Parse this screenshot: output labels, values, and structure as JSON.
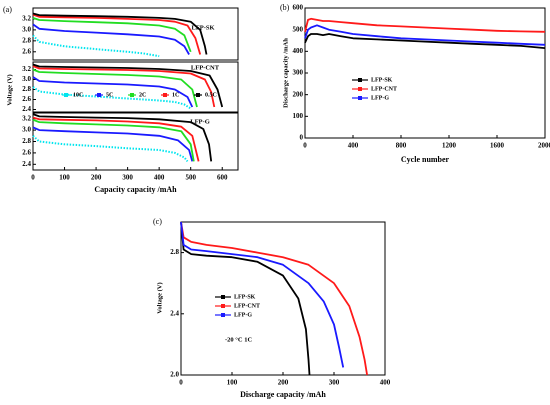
{
  "chart_data": [
    {
      "type": "line",
      "panel": "(a)",
      "title": "LFP-SK",
      "xlim": [
        0,
        650
      ],
      "ylim": [
        2.45,
        3.4
      ],
      "yticks": [
        2.6,
        2.8,
        {
          "value": 3,
          "label": "3.0"
        },
        3.2
      ],
      "series": [
        {
          "color": "#00e5ee",
          "x": [
            0,
            20,
            100,
            200,
            300,
            350,
            400
          ],
          "values": [
            2.9,
            2.78,
            2.7,
            2.65,
            2.6,
            2.57,
            2.52
          ]
        },
        {
          "color": "#1a1aff",
          "x": [
            0,
            20,
            100,
            200,
            300,
            400,
            450,
            480,
            495
          ],
          "values": [
            3.1,
            3.02,
            2.98,
            2.95,
            2.92,
            2.88,
            2.82,
            2.7,
            2.55
          ]
        },
        {
          "color": "#22dd22",
          "x": [
            0,
            20,
            100,
            200,
            300,
            400,
            450,
            480,
            500
          ],
          "values": [
            3.22,
            3.18,
            3.16,
            3.14,
            3.12,
            3.08,
            3.02,
            2.9,
            2.6
          ]
        },
        {
          "color": "#ff1a1a",
          "x": [
            0,
            20,
            100,
            200,
            300,
            400,
            450,
            490,
            515,
            530
          ],
          "values": [
            3.28,
            3.24,
            3.23,
            3.22,
            3.2,
            3.18,
            3.15,
            3.08,
            2.85,
            2.55
          ]
        },
        {
          "color": "#000000",
          "x": [
            0,
            20,
            100,
            200,
            300,
            400,
            450,
            500,
            530,
            545,
            550
          ],
          "values": [
            3.3,
            3.27,
            3.26,
            3.25,
            3.24,
            3.22,
            3.2,
            3.15,
            3.0,
            2.7,
            2.55
          ]
        }
      ]
    },
    {
      "type": "line",
      "title": "LFP-CNT",
      "ylabel": "Voltage (V)",
      "xlim": [
        0,
        650
      ],
      "ylim": [
        2.35,
        3.35
      ],
      "yticks": [
        2.4,
        2.6,
        2.8,
        {
          "value": 3,
          "label": "3.0"
        },
        3.2
      ],
      "legend": "bottom-left",
      "series": [
        {
          "name": "10C",
          "color": "#00e5ee",
          "x": [
            0,
            20,
            100,
            200,
            300,
            400,
            450,
            480,
            500
          ],
          "values": [
            2.85,
            2.76,
            2.7,
            2.66,
            2.62,
            2.58,
            2.55,
            2.5,
            2.42
          ]
        },
        {
          "name": "5C",
          "color": "#1a1aff",
          "x": [
            0,
            20,
            100,
            200,
            300,
            400,
            450,
            490,
            505
          ],
          "values": [
            3.05,
            2.97,
            2.94,
            2.92,
            2.9,
            2.86,
            2.8,
            2.65,
            2.45
          ]
        },
        {
          "name": "2C",
          "color": "#22dd22",
          "x": [
            0,
            20,
            100,
            200,
            300,
            400,
            470,
            505,
            520
          ],
          "values": [
            3.2,
            3.15,
            3.13,
            3.11,
            3.09,
            3.06,
            3.0,
            2.8,
            2.45
          ]
        },
        {
          "name": "1C",
          "color": "#ff1a1a",
          "x": [
            0,
            20,
            100,
            200,
            300,
            400,
            500,
            545,
            565,
            575
          ],
          "values": [
            3.27,
            3.22,
            3.21,
            3.2,
            3.19,
            3.17,
            3.12,
            3.0,
            2.75,
            2.45
          ]
        },
        {
          "name": "0.5C",
          "color": "#000000",
          "x": [
            0,
            20,
            100,
            200,
            300,
            400,
            500,
            560,
            585,
            600
          ],
          "values": [
            3.3,
            3.26,
            3.25,
            3.24,
            3.23,
            3.21,
            3.17,
            3.08,
            2.8,
            2.45
          ]
        }
      ]
    },
    {
      "type": "line",
      "title": "LFP-G",
      "xlabel": "Capacity capacity /mAh",
      "xlim": [
        0,
        650
      ],
      "ylim": [
        2.3,
        3.3
      ],
      "xticks": [
        0,
        100,
        200,
        300,
        400,
        500,
        600
      ],
      "yticks": [
        2.4,
        2.6,
        2.8,
        {
          "value": 3,
          "label": "3.0"
        },
        3.2
      ],
      "series": [
        {
          "color": "#00e5ee",
          "x": [
            0,
            20,
            100,
            200,
            300,
            400,
            450,
            480,
            490
          ],
          "values": [
            2.9,
            2.8,
            2.75,
            2.72,
            2.68,
            2.65,
            2.6,
            2.52,
            2.45
          ]
        },
        {
          "color": "#1a1aff",
          "x": [
            0,
            20,
            100,
            200,
            300,
            400,
            460,
            495,
            505
          ],
          "values": [
            3.05,
            3.0,
            2.98,
            2.96,
            2.94,
            2.9,
            2.82,
            2.65,
            2.45
          ]
        },
        {
          "color": "#22dd22",
          "x": [
            0,
            20,
            100,
            200,
            300,
            400,
            470,
            500,
            510
          ],
          "values": [
            3.18,
            3.14,
            3.12,
            3.1,
            3.08,
            3.05,
            2.98,
            2.75,
            2.45
          ]
        },
        {
          "color": "#ff1a1a",
          "x": [
            0,
            20,
            100,
            200,
            300,
            400,
            470,
            505,
            525
          ],
          "values": [
            3.22,
            3.19,
            3.18,
            3.17,
            3.15,
            3.12,
            3.06,
            2.9,
            2.45
          ]
        },
        {
          "color": "#000000",
          "x": [
            0,
            20,
            100,
            200,
            300,
            400,
            500,
            540,
            558,
            565
          ],
          "values": [
            3.28,
            3.24,
            3.23,
            3.22,
            3.21,
            3.19,
            3.14,
            3.02,
            2.75,
            2.45
          ]
        }
      ]
    },
    {
      "type": "line",
      "panel": "(b)",
      "xlabel": "Cycle number",
      "ylabel": "Discharge capacity /mAh",
      "xlim": [
        0,
        2000
      ],
      "ylim": [
        0,
        600
      ],
      "xticks": [
        0,
        400,
        800,
        1200,
        1600,
        2000
      ],
      "yticks": [
        0,
        100,
        200,
        300,
        400,
        500,
        600
      ],
      "legend": "center",
      "series": [
        {
          "name": "LFP-SK",
          "color": "#000000",
          "x": [
            0,
            25,
            50,
            100,
            150,
            200,
            300,
            400,
            600,
            800,
            1000,
            1200,
            1400,
            1600,
            1800,
            2000
          ],
          "values": [
            440,
            470,
            480,
            480,
            475,
            480,
            470,
            460,
            455,
            450,
            445,
            440,
            435,
            430,
            425,
            415
          ]
        },
        {
          "name": "LFP-CNT",
          "color": "#ff1a1a",
          "x": [
            0,
            25,
            50,
            100,
            150,
            200,
            300,
            400,
            600,
            800,
            1000,
            1200,
            1400,
            1600,
            1800,
            2000
          ],
          "values": [
            490,
            545,
            550,
            545,
            540,
            540,
            535,
            530,
            520,
            515,
            510,
            505,
            500,
            495,
            492,
            490
          ]
        },
        {
          "name": "LFP-G",
          "color": "#1a1aff",
          "x": [
            0,
            25,
            50,
            100,
            150,
            200,
            300,
            400,
            600,
            800,
            1000,
            1200,
            1400,
            1600,
            1800,
            2000
          ],
          "values": [
            460,
            500,
            510,
            520,
            510,
            500,
            490,
            480,
            470,
            460,
            455,
            450,
            445,
            440,
            435,
            430
          ]
        }
      ]
    },
    {
      "type": "line",
      "panel": "(c)",
      "xlabel": "Discharge capacity /mAh",
      "ylabel": "Voltage (V)",
      "annotation": "-20 °C  1C",
      "xlim": [
        0,
        400
      ],
      "ylim": [
        2,
        3
      ],
      "xticks": [
        0,
        100,
        200,
        300,
        400
      ],
      "yticks": [
        {
          "value": 2,
          "label": "2.0"
        },
        2.4,
        2.8
      ],
      "legend": "center-left",
      "series": [
        {
          "name": "LFP-SK",
          "color": "#000000",
          "x": [
            0,
            5,
            20,
            50,
            100,
            150,
            200,
            230,
            245,
            250,
            252
          ],
          "values": [
            3.0,
            2.82,
            2.79,
            2.78,
            2.77,
            2.74,
            2.65,
            2.5,
            2.3,
            2.1,
            2.0
          ]
        },
        {
          "name": "LFP-CNT",
          "color": "#ff1a1a",
          "x": [
            0,
            5,
            20,
            50,
            100,
            150,
            200,
            250,
            300,
            330,
            350,
            360,
            365
          ],
          "values": [
            3.0,
            2.9,
            2.87,
            2.85,
            2.83,
            2.8,
            2.77,
            2.72,
            2.6,
            2.45,
            2.25,
            2.1,
            2.0
          ]
        },
        {
          "name": "LFP-G",
          "color": "#1a1aff",
          "x": [
            0,
            5,
            20,
            50,
            100,
            150,
            200,
            250,
            280,
            300,
            310,
            318
          ],
          "values": [
            3.0,
            2.85,
            2.82,
            2.81,
            2.79,
            2.77,
            2.72,
            2.6,
            2.48,
            2.33,
            2.18,
            2.05
          ]
        }
      ]
    }
  ]
}
